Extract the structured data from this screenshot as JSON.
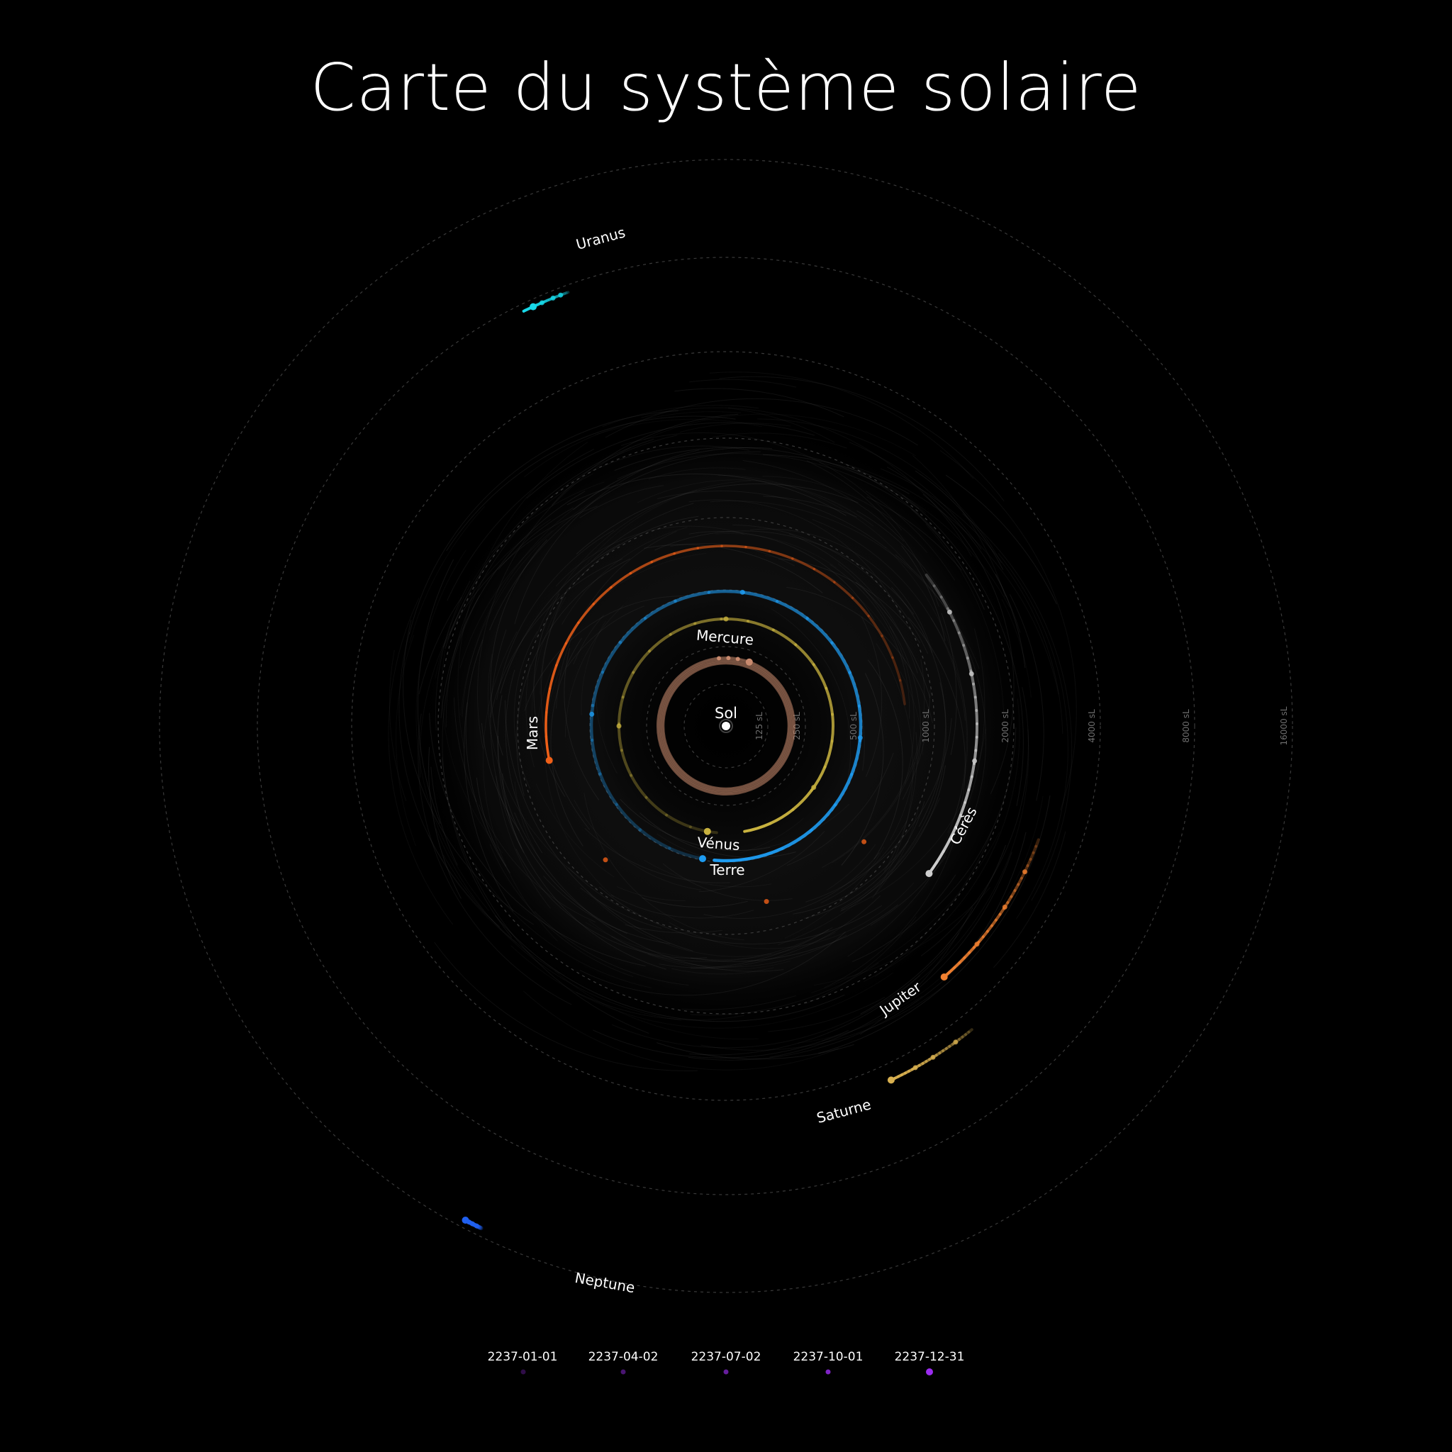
{
  "title": "Carte du système solaire",
  "sun": {
    "label": "Sol",
    "color": "#ffffff"
  },
  "distance_rings": [
    {
      "label": "125 sL",
      "value": 125
    },
    {
      "label": "250 sL",
      "value": 250
    },
    {
      "label": "500 sL",
      "value": 500
    },
    {
      "label": "1000 sL",
      "value": 1000
    },
    {
      "label": "2000 sL",
      "value": 2000
    },
    {
      "label": "4000 sL",
      "value": 4000
    },
    {
      "label": "8000 sL",
      "value": 8000
    },
    {
      "label": "16000 sL",
      "value": 16000
    }
  ],
  "planets": [
    {
      "name": "Mercure",
      "color": "#c98a6e"
    },
    {
      "name": "Vénus",
      "color": "#c8b23f"
    },
    {
      "name": "Terre",
      "color": "#1e9bf0"
    },
    {
      "name": "Mars",
      "color": "#f06018"
    },
    {
      "name": "Cérès",
      "color": "#cfcfcf"
    },
    {
      "name": "Jupiter",
      "color": "#f08030"
    },
    {
      "name": "Saturne",
      "color": "#d8b050"
    },
    {
      "name": "Uranus",
      "color": "#18d8e8"
    },
    {
      "name": "Neptune",
      "color": "#2060f0"
    }
  ],
  "timeline": {
    "dates": [
      "2237-01-01",
      "2237-04-02",
      "2237-07-02",
      "2237-10-01",
      "2237-12-31"
    ],
    "color": "#9b2cf0"
  }
}
